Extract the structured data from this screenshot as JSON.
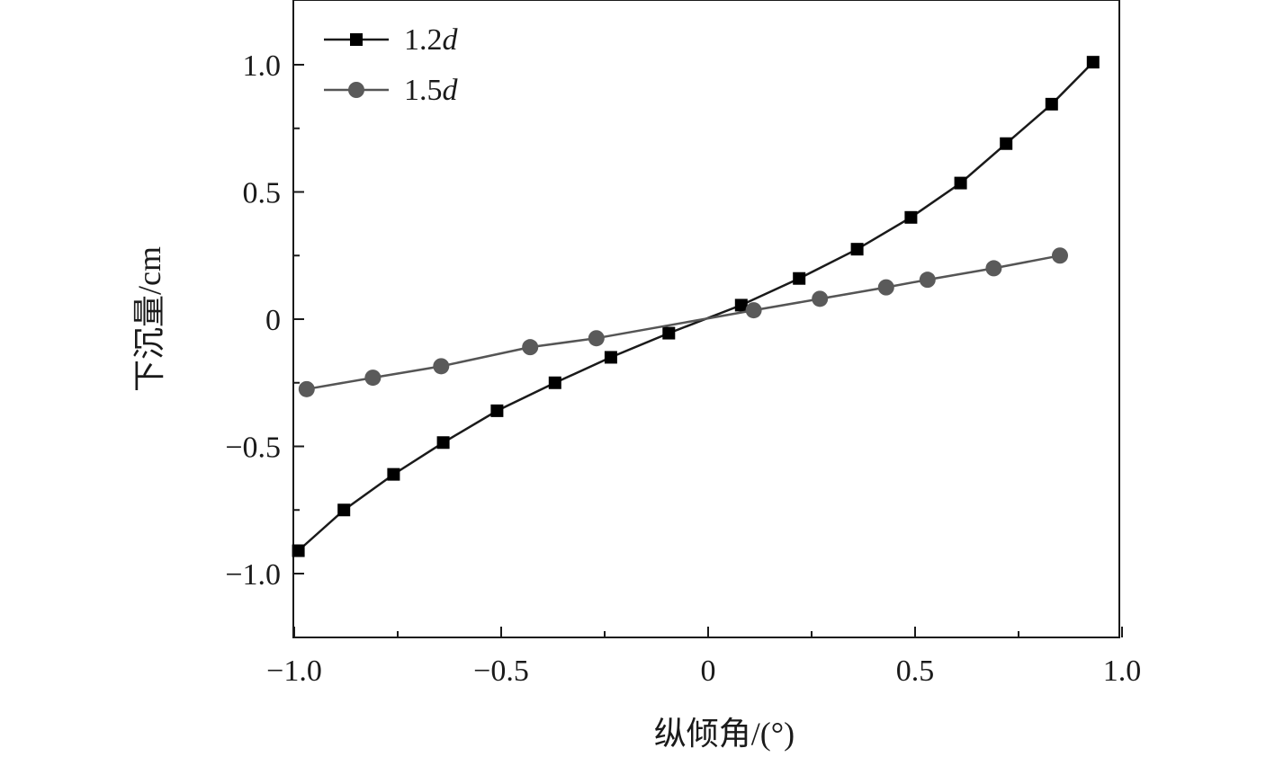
{
  "chart_data": {
    "type": "line",
    "title": "",
    "xlabel": "纵倾角/(°)",
    "ylabel": "下沉量/cm",
    "xlim": [
      -1.0,
      1.0
    ],
    "ylim": [
      -1.25,
      1.25
    ],
    "xticks": [
      -1.0,
      -0.5,
      0,
      0.5,
      1.0
    ],
    "xtick_labels": [
      "−1.0",
      "−0.5",
      "0",
      "0.5",
      "1.0"
    ],
    "yticks": [
      -1.0,
      -0.5,
      0,
      0.5,
      1.0
    ],
    "ytick_labels": [
      "−1.0",
      "−0.5",
      "0",
      "0.5",
      "1.0"
    ],
    "grid": false,
    "legend": "top-left",
    "series": [
      {
        "name_main": "1.2",
        "name_ital": "d",
        "marker": "square",
        "color": "#1a1a1a",
        "marker_color": "#000000",
        "points": [
          [
            -0.99,
            -0.91
          ],
          [
            -0.88,
            -0.75
          ],
          [
            -0.76,
            -0.61
          ],
          [
            -0.64,
            -0.485
          ],
          [
            -0.51,
            -0.36
          ],
          [
            -0.37,
            -0.25
          ],
          [
            -0.235,
            -0.15
          ],
          [
            -0.095,
            -0.055
          ],
          [
            0.08,
            0.055
          ],
          [
            0.22,
            0.16
          ],
          [
            0.36,
            0.275
          ],
          [
            0.49,
            0.4
          ],
          [
            0.61,
            0.535
          ],
          [
            0.72,
            0.69
          ],
          [
            0.83,
            0.845
          ],
          [
            0.93,
            1.01
          ]
        ]
      },
      {
        "name_main": "1.5",
        "name_ital": "d",
        "marker": "circle",
        "color": "#555555",
        "marker_color": "#5a5a5a",
        "points": [
          [
            -0.97,
            -0.275
          ],
          [
            -0.81,
            -0.23
          ],
          [
            -0.645,
            -0.185
          ],
          [
            -0.43,
            -0.11
          ],
          [
            -0.27,
            -0.075
          ],
          [
            0.11,
            0.035
          ],
          [
            0.27,
            0.08
          ],
          [
            0.43,
            0.125
          ],
          [
            0.53,
            0.155
          ],
          [
            0.69,
            0.2
          ],
          [
            0.85,
            0.25
          ]
        ]
      }
    ]
  }
}
